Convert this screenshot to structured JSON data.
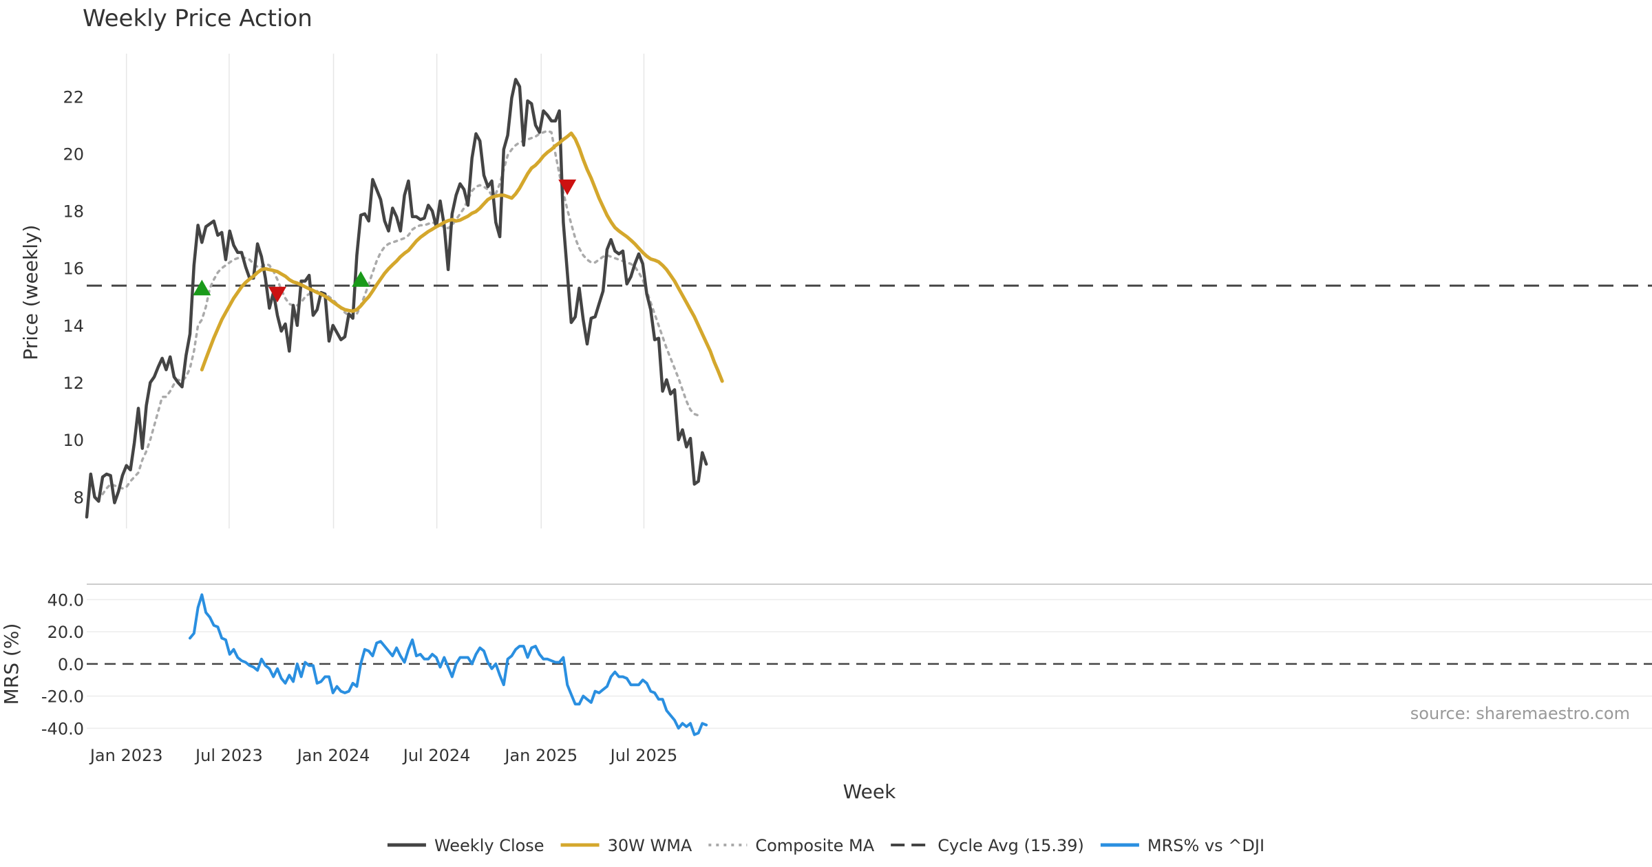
{
  "chart_data": [
    {
      "type": "line",
      "title": "Weekly Price Action",
      "xlabel": "Week",
      "ylabel": "Price (weekly)",
      "ylim": [
        6.9,
        23.5
      ],
      "yticks": [
        8,
        10,
        12,
        14,
        16,
        18,
        20,
        22
      ],
      "x_tick_labels": [
        "Jan 2023",
        "Jul 2023",
        "Jan 2024",
        "Jul 2024",
        "Jan 2025",
        "Jul 2025"
      ],
      "x_tick_dates": [
        "2023-01-01",
        "2023-07-01",
        "2024-01-01",
        "2024-07-01",
        "2025-01-01",
        "2025-07-01"
      ],
      "x_start": "2022-10-23",
      "x_step_days": 7,
      "grid": "vertical",
      "reference_line": {
        "label": "Cycle Avg (15.39)",
        "value": 15.39
      },
      "series": [
        {
          "name": "Weekly Close",
          "color": "#444444",
          "values": [
            7.3,
            8.8,
            8.0,
            7.85,
            8.7,
            8.8,
            8.75,
            7.8,
            8.2,
            8.75,
            9.1,
            8.95,
            9.9,
            11.1,
            9.7,
            11.2,
            12.0,
            12.2,
            12.55,
            12.85,
            12.45,
            12.9,
            12.2,
            12.0,
            11.85,
            12.95,
            13.7,
            16.1,
            17.5,
            16.9,
            17.45,
            17.55,
            17.65,
            17.15,
            17.25,
            16.3,
            17.3,
            16.8,
            16.55,
            16.55,
            16.05,
            15.65,
            15.65,
            16.85,
            16.4,
            15.65,
            14.6,
            15.15,
            14.35,
            13.8,
            14.05,
            13.1,
            14.7,
            14.0,
            15.55,
            15.55,
            15.75,
            14.35,
            14.55,
            15.15,
            15.1,
            13.45,
            14.0,
            13.75,
            13.5,
            13.6,
            14.4,
            14.25,
            16.45,
            17.85,
            17.9,
            17.65,
            19.1,
            18.75,
            18.4,
            17.65,
            17.3,
            18.1,
            17.8,
            17.3,
            18.55,
            19.05,
            17.8,
            17.8,
            17.7,
            17.75,
            18.2,
            18.0,
            17.45,
            18.35,
            17.5,
            15.95,
            17.9,
            18.55,
            18.95,
            18.75,
            18.2,
            19.85,
            20.7,
            20.45,
            19.25,
            18.85,
            19.05,
            17.6,
            17.1,
            20.15,
            20.65,
            21.95,
            22.6,
            22.35,
            20.3,
            21.85,
            21.75,
            21.0,
            20.75,
            21.5,
            21.35,
            21.15,
            21.15,
            21.5,
            17.6,
            15.85,
            14.1,
            14.3,
            15.3,
            14.2,
            13.35,
            14.25,
            14.3,
            14.75,
            15.2,
            16.65,
            17.0,
            16.6,
            16.5,
            16.6,
            15.45,
            15.7,
            16.15,
            16.5,
            16.15,
            15.1,
            14.55,
            13.5,
            13.55,
            11.7,
            12.1,
            11.6,
            11.75,
            10.0,
            10.35,
            9.75,
            10.05,
            8.45,
            8.55,
            9.55,
            9.15
          ]
        },
        {
          "name": "30W WMA",
          "color": "#d4a72c",
          "start_index": 29,
          "values": [
            12.45,
            12.83,
            13.2,
            13.56,
            13.88,
            14.2,
            14.45,
            14.7,
            14.95,
            15.15,
            15.35,
            15.5,
            15.62,
            15.72,
            15.85,
            15.95,
            15.98,
            15.95,
            15.92,
            15.88,
            15.8,
            15.72,
            15.6,
            15.52,
            15.48,
            15.42,
            15.35,
            15.28,
            15.22,
            15.15,
            15.1,
            15.02,
            14.92,
            14.82,
            14.72,
            14.62,
            14.55,
            14.52,
            14.5,
            14.55,
            14.68,
            14.85,
            15.0,
            15.2,
            15.42,
            15.62,
            15.82,
            15.98,
            16.12,
            16.25,
            16.4,
            16.52,
            16.62,
            16.78,
            16.95,
            17.08,
            17.18,
            17.28,
            17.36,
            17.45,
            17.52,
            17.6,
            17.66,
            17.7,
            17.65,
            17.68,
            17.75,
            17.82,
            17.92,
            17.98,
            18.1,
            18.25,
            18.4,
            18.48,
            18.52,
            18.55,
            18.55,
            18.5,
            18.45,
            18.6,
            18.8,
            19.05,
            19.3,
            19.5,
            19.6,
            19.75,
            19.92,
            20.05,
            20.15,
            20.28,
            20.38,
            20.5,
            20.6,
            20.72,
            20.52,
            20.2,
            19.8,
            19.45,
            19.15,
            18.8,
            18.45,
            18.15,
            17.85,
            17.62,
            17.42,
            17.3,
            17.2,
            17.1,
            16.98,
            16.85,
            16.7,
            16.55,
            16.42,
            16.32,
            16.28,
            16.22,
            16.1,
            15.95,
            15.75,
            15.55,
            15.3,
            15.05,
            14.8,
            14.55,
            14.3,
            14.0,
            13.7,
            13.4,
            13.1,
            12.72,
            12.4,
            12.05
          ]
        },
        {
          "name": "Composite MA",
          "color": "#aaaaaa",
          "start_index": 4,
          "values": [
            8.1,
            8.3,
            8.45,
            8.4,
            8.35,
            8.3,
            8.35,
            8.55,
            8.7,
            8.85,
            9.3,
            9.6,
            10.0,
            10.5,
            11.0,
            11.5,
            11.5,
            11.7,
            11.95,
            12.1,
            12.05,
            12.2,
            12.5,
            13.1,
            14.0,
            14.2,
            14.65,
            15.3,
            15.6,
            15.85,
            16.0,
            16.1,
            16.2,
            16.3,
            16.35,
            16.4,
            16.35,
            16.3,
            16.15,
            16.05,
            16.05,
            16.15,
            16.1,
            15.9,
            15.6,
            15.25,
            14.95,
            14.75,
            14.7,
            14.7,
            14.8,
            15.0,
            15.1,
            15.15,
            15.2,
            15.15,
            15.1,
            15.0,
            14.9,
            14.75,
            14.6,
            14.45,
            14.35,
            14.3,
            14.4,
            14.7,
            15.05,
            15.45,
            15.85,
            16.25,
            16.55,
            16.75,
            16.85,
            16.9,
            16.95,
            17.0,
            17.05,
            17.15,
            17.35,
            17.45,
            17.5,
            17.5,
            17.55,
            17.6,
            17.55,
            17.5,
            17.45,
            17.4,
            17.5,
            17.7,
            17.9,
            18.1,
            18.4,
            18.7,
            18.85,
            18.9,
            18.85,
            18.75,
            18.55,
            18.6,
            18.95,
            19.45,
            19.95,
            20.15,
            20.3,
            20.4,
            20.45,
            20.5,
            20.55,
            20.6,
            20.7,
            20.75,
            20.8,
            20.75,
            20.0,
            19.3,
            18.65,
            18.05,
            17.55,
            17.05,
            16.7,
            16.45,
            16.3,
            16.2,
            16.2,
            16.3,
            16.4,
            16.45,
            16.4,
            16.35,
            16.3,
            16.25,
            16.2,
            16.15,
            16.05,
            15.85,
            15.6,
            15.2,
            14.8,
            14.4,
            14.0,
            13.6,
            13.2,
            12.85,
            12.5,
            12.15,
            11.75,
            11.35,
            11.05,
            10.9,
            10.85
          ]
        }
      ],
      "markers": [
        {
          "type": "buy",
          "color": "#1a9a1a",
          "index": 29,
          "value": 15.3
        },
        {
          "type": "sell",
          "color": "#cc1111",
          "index": 48,
          "value": 15.1
        },
        {
          "type": "buy",
          "color": "#1a9a1a",
          "index": 69,
          "value": 15.6
        },
        {
          "type": "sell",
          "color": "#cc1111",
          "index": 121,
          "value": 18.85
        }
      ]
    },
    {
      "type": "line",
      "xlabel": "Week",
      "ylabel": "MRS (%)",
      "ylim": [
        -45,
        47
      ],
      "yticks": [
        -40,
        -20,
        0,
        20,
        40
      ],
      "ytick_labels": [
        "-40.0",
        "-20.0",
        "0.0",
        "20.0",
        "40.0"
      ],
      "reference_line": {
        "value": 0
      },
      "series": [
        {
          "name": "MRS% vs ^DJI",
          "color": "#2a8fe0",
          "start_index": 26,
          "values": [
            16,
            19,
            35,
            43,
            32,
            29,
            24,
            23,
            16,
            15,
            6,
            9,
            4,
            2,
            1,
            -1,
            -2,
            -4,
            3,
            -1,
            -3,
            -8,
            -3,
            -9,
            -12,
            -7,
            -11,
            0,
            -8,
            1,
            -1,
            -1,
            -12,
            -11,
            -8,
            -8,
            -18,
            -14,
            -17,
            -18,
            -17,
            -12,
            -14,
            0,
            9,
            8,
            5,
            13,
            14,
            11,
            8,
            5,
            10,
            5,
            1,
            9,
            15,
            5,
            6,
            3,
            3,
            6,
            4,
            -2,
            4,
            -2,
            -8,
            0,
            4,
            4,
            4,
            0,
            6,
            10,
            8,
            1,
            -3,
            0,
            -7,
            -13,
            3,
            5,
            9,
            11,
            11,
            4,
            10,
            11,
            6,
            3,
            3,
            2,
            1,
            1,
            4,
            -13,
            -19,
            -25,
            -25,
            -20,
            -22,
            -24,
            -17,
            -18,
            -16,
            -14,
            -8,
            -5,
            -8,
            -8,
            -9,
            -13,
            -13,
            -13,
            -10,
            -12,
            -17,
            -18,
            -22,
            -22,
            -29,
            -32,
            -35,
            -40,
            -37,
            -39,
            -37,
            -44,
            -43,
            -37,
            -38
          ]
        }
      ]
    }
  ],
  "legend": {
    "placement": "bottom",
    "items": [
      {
        "label": "Weekly Close",
        "style": "solid",
        "color": "#444444"
      },
      {
        "label": "30W WMA",
        "style": "solid",
        "color": "#d4a72c"
      },
      {
        "label": "Composite MA",
        "style": "dotted",
        "color": "#aaaaaa"
      },
      {
        "label": "Cycle Avg (15.39)",
        "style": "dashed",
        "color": "#444444"
      },
      {
        "label": "MRS% vs ^DJI",
        "style": "solid",
        "color": "#2a8fe0"
      }
    ]
  },
  "source_note": "source: sharemaestro.com"
}
